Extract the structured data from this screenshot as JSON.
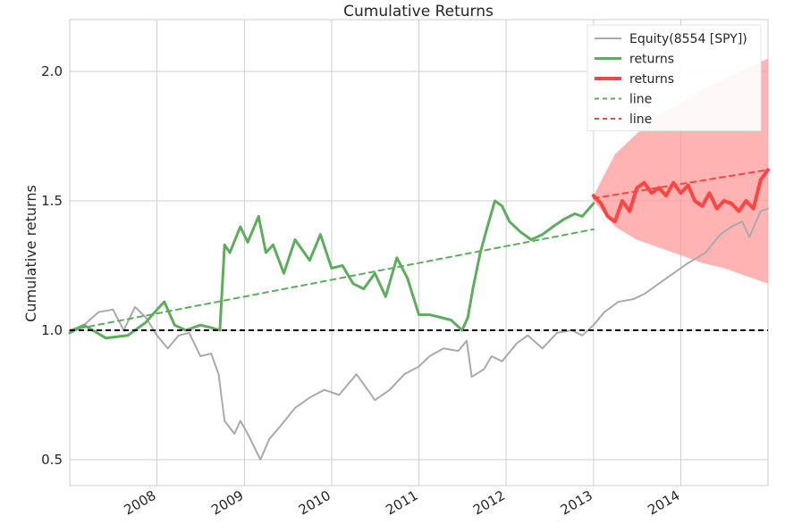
{
  "chart_data": {
    "type": "line",
    "title": "Cumulative Returns",
    "xlabel": "",
    "ylabel": "Cumulative returns",
    "xlim": [
      "2007-01-01",
      "2015-01-01"
    ],
    "ylim": [
      0.4,
      2.2
    ],
    "yticks": [
      0.5,
      1.0,
      1.5,
      2.0
    ],
    "ytick_labels": [
      "0.5",
      "1.0",
      "1.5",
      "2.0"
    ],
    "xticks": [
      "2008-01-01",
      "2009-01-01",
      "2010-01-01",
      "2011-01-01",
      "2012-01-01",
      "2013-01-01",
      "2014-01-01"
    ],
    "xtick_labels": [
      "2008",
      "2009",
      "2010",
      "2011",
      "2012",
      "2013",
      "2014"
    ],
    "grid": true,
    "legend_position": "top-right",
    "reference_line": {
      "y": 1.0,
      "style": "dashed",
      "color": "#000000"
    },
    "series": [
      {
        "name": "Equity(8554 [SPY])",
        "color": "#aaaaaa",
        "x": [
          "2007-01-01",
          "2007-03-01",
          "2007-05-01",
          "2007-07-01",
          "2007-08-15",
          "2007-10-01",
          "2007-11-15",
          "2008-01-01",
          "2008-02-15",
          "2008-04-01",
          "2008-05-15",
          "2008-07-01",
          "2008-08-15",
          "2008-09-15",
          "2008-10-10",
          "2008-11-20",
          "2008-12-15",
          "2009-01-15",
          "2009-03-09",
          "2009-04-15",
          "2009-06-01",
          "2009-08-01",
          "2009-10-01",
          "2009-12-01",
          "2010-02-01",
          "2010-04-15",
          "2010-06-01",
          "2010-07-01",
          "2010-09-01",
          "2010-11-01",
          "2011-01-01",
          "2011-02-15",
          "2011-04-15",
          "2011-06-15",
          "2011-07-20",
          "2011-08-10",
          "2011-10-01",
          "2011-11-01",
          "2011-12-15",
          "2012-02-15",
          "2012-04-01",
          "2012-06-01",
          "2012-08-01",
          "2012-10-01",
          "2012-11-15",
          "2013-01-01",
          "2013-02-15",
          "2013-04-15",
          "2013-06-15",
          "2013-08-01",
          "2013-10-01",
          "2013-12-01",
          "2014-02-01",
          "2014-04-15",
          "2014-06-15",
          "2014-08-01",
          "2014-09-15",
          "2014-10-15",
          "2014-12-01",
          "2015-01-01"
        ],
        "values": [
          1.0,
          1.02,
          1.07,
          1.08,
          1.0,
          1.09,
          1.05,
          0.98,
          0.93,
          0.98,
          0.99,
          0.9,
          0.91,
          0.83,
          0.65,
          0.6,
          0.65,
          0.6,
          0.5,
          0.58,
          0.63,
          0.7,
          0.74,
          0.77,
          0.75,
          0.83,
          0.77,
          0.73,
          0.77,
          0.83,
          0.86,
          0.9,
          0.93,
          0.92,
          0.96,
          0.82,
          0.85,
          0.9,
          0.88,
          0.95,
          0.98,
          0.93,
          0.99,
          1.0,
          0.98,
          1.02,
          1.07,
          1.11,
          1.12,
          1.14,
          1.18,
          1.22,
          1.26,
          1.3,
          1.37,
          1.4,
          1.42,
          1.36,
          1.46,
          1.47
        ]
      },
      {
        "name": "returns",
        "color": "#5cad5c",
        "x": [
          "2007-01-01",
          "2007-03-01",
          "2007-06-01",
          "2007-09-01",
          "2007-11-15",
          "2008-01-01",
          "2008-02-01",
          "2008-03-15",
          "2008-05-01",
          "2008-07-01",
          "2008-08-15",
          "2008-09-20",
          "2008-10-10",
          "2008-11-01",
          "2008-12-15",
          "2009-01-15",
          "2009-03-01",
          "2009-04-01",
          "2009-05-01",
          "2009-06-15",
          "2009-08-01",
          "2009-10-01",
          "2009-11-15",
          "2010-01-01",
          "2010-02-15",
          "2010-04-01",
          "2010-05-15",
          "2010-07-01",
          "2010-08-15",
          "2010-10-01",
          "2010-11-15",
          "2011-01-01",
          "2011-02-15",
          "2011-04-01",
          "2011-05-15",
          "2011-07-01",
          "2011-07-25",
          "2011-08-15",
          "2011-09-15",
          "2011-10-15",
          "2011-11-15",
          "2011-12-15",
          "2012-01-15",
          "2012-03-01",
          "2012-04-15",
          "2012-06-01",
          "2012-07-15",
          "2012-09-01",
          "2012-10-15",
          "2012-11-15",
          "2013-01-01"
        ],
        "values": [
          0.99,
          1.02,
          0.97,
          0.98,
          1.03,
          1.08,
          1.11,
          1.02,
          1.0,
          1.02,
          1.01,
          1.0,
          1.33,
          1.3,
          1.4,
          1.34,
          1.44,
          1.3,
          1.33,
          1.22,
          1.35,
          1.27,
          1.37,
          1.24,
          1.25,
          1.18,
          1.16,
          1.22,
          1.13,
          1.28,
          1.2,
          1.06,
          1.06,
          1.05,
          1.04,
          1.0,
          1.05,
          1.16,
          1.3,
          1.4,
          1.5,
          1.48,
          1.42,
          1.38,
          1.35,
          1.37,
          1.4,
          1.43,
          1.45,
          1.44,
          1.49
        ]
      },
      {
        "name": "returns",
        "color": "#ff4444",
        "x": [
          "2013-01-01",
          "2013-02-01",
          "2013-03-01",
          "2013-04-01",
          "2013-05-01",
          "2013-06-01",
          "2013-07-01",
          "2013-08-01",
          "2013-09-01",
          "2013-10-01",
          "2013-11-01",
          "2013-12-01",
          "2014-01-01",
          "2014-02-01",
          "2014-03-01",
          "2014-04-01",
          "2014-05-01",
          "2014-06-01",
          "2014-07-01",
          "2014-08-01",
          "2014-09-01",
          "2014-10-01",
          "2014-11-01",
          "2014-12-01",
          "2015-01-01"
        ],
        "values": [
          1.52,
          1.49,
          1.44,
          1.42,
          1.5,
          1.46,
          1.55,
          1.57,
          1.53,
          1.55,
          1.52,
          1.57,
          1.53,
          1.56,
          1.5,
          1.48,
          1.53,
          1.47,
          1.5,
          1.49,
          1.46,
          1.5,
          1.47,
          1.58,
          1.62
        ]
      },
      {
        "name": "line",
        "color": "#5cad5c",
        "style": "dashed",
        "x": [
          "2007-01-01",
          "2013-01-01"
        ],
        "values": [
          1.0,
          1.39
        ]
      },
      {
        "name": "line",
        "color": "#ff4444",
        "style": "dashed",
        "x": [
          "2013-01-01",
          "2015-01-01"
        ],
        "values": [
          1.51,
          1.62
        ]
      }
    ],
    "confidence_band": {
      "color": "#ff9999",
      "x": [
        "2013-01-01",
        "2013-04-01",
        "2013-07-01",
        "2013-10-01",
        "2014-01-01",
        "2014-04-01",
        "2014-07-01",
        "2014-10-01",
        "2015-01-01"
      ],
      "upper": [
        1.52,
        1.68,
        1.76,
        1.83,
        1.88,
        1.93,
        1.97,
        2.01,
        2.05
      ],
      "lower": [
        1.5,
        1.4,
        1.35,
        1.32,
        1.29,
        1.26,
        1.24,
        1.21,
        1.18
      ]
    }
  }
}
